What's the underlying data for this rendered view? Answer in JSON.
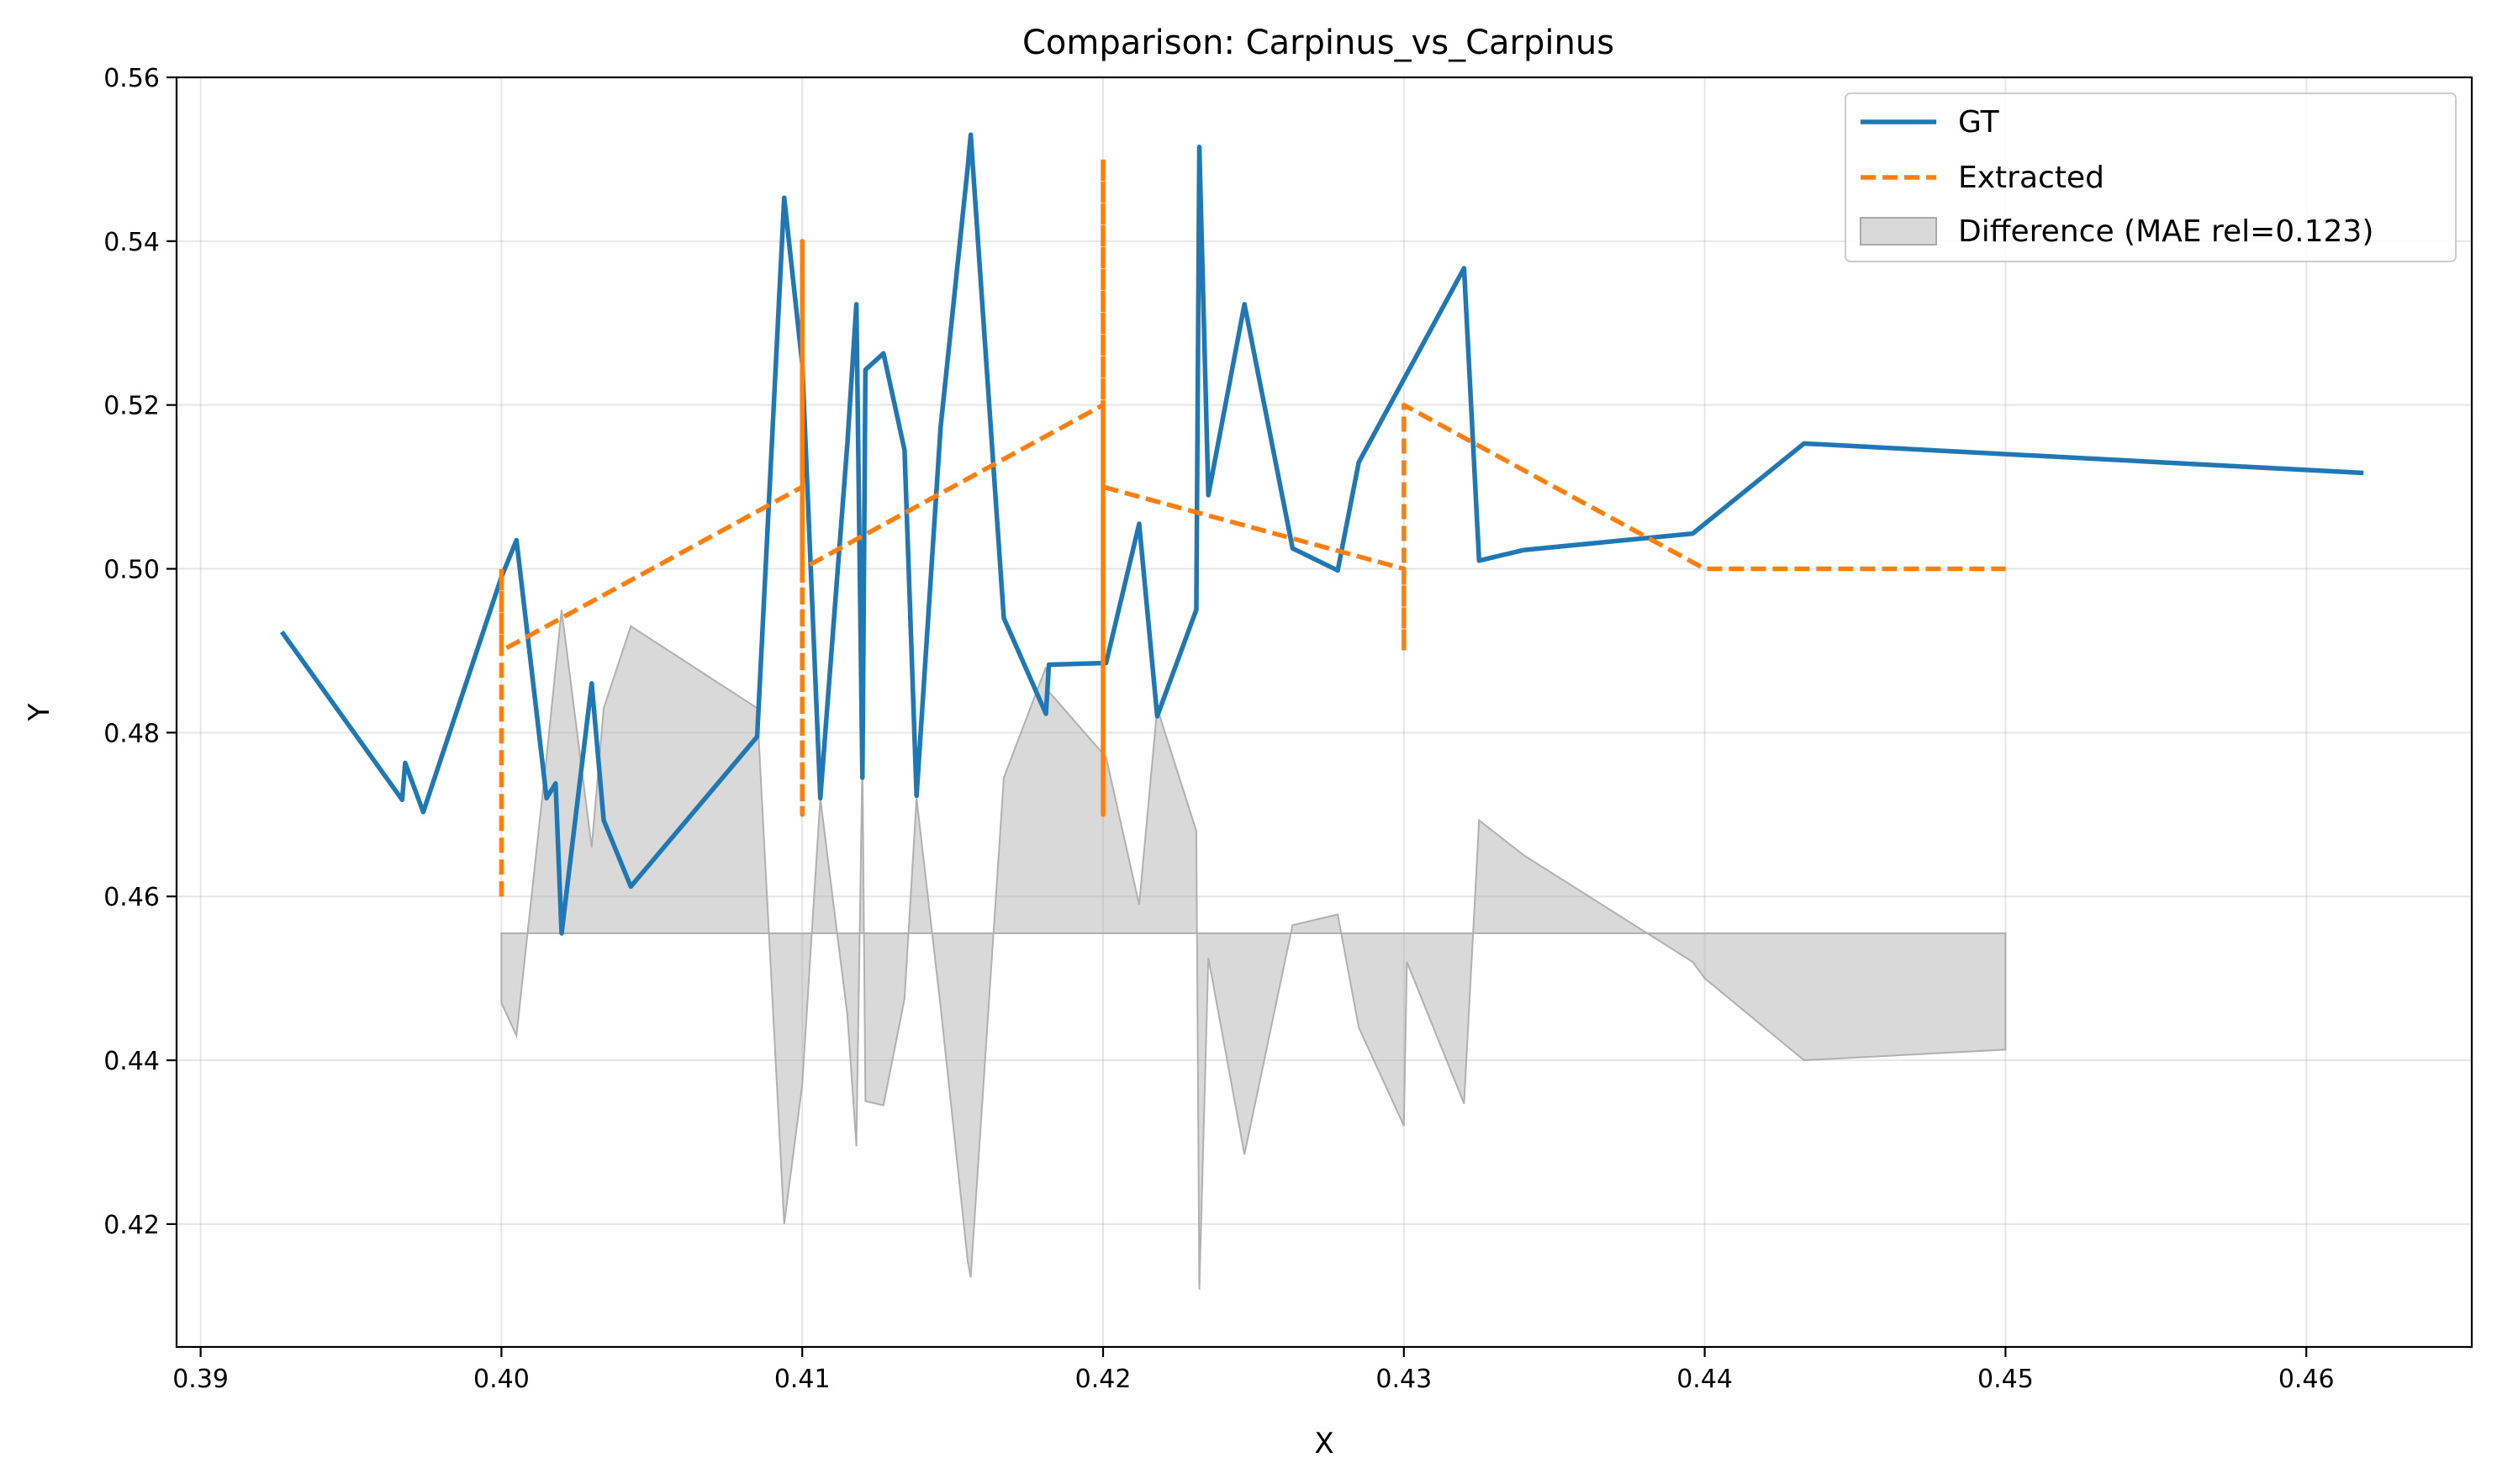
{
  "chart_data": {
    "type": "line",
    "title": "Comparison: Carpinus_vs_Carpinus",
    "xlabel": "X",
    "ylabel": "Y",
    "xlim": [
      0.3892,
      0.4655
    ],
    "ylim": [
      0.405,
      0.56
    ],
    "xticks": [
      0.39,
      0.4,
      0.41,
      0.42,
      0.43,
      0.44,
      0.45,
      0.46
    ],
    "xtick_labels": [
      "0.39",
      "0.40",
      "0.41",
      "0.42",
      "0.43",
      "0.44",
      "0.45",
      "0.46"
    ],
    "yticks": [
      0.42,
      0.44,
      0.46,
      0.48,
      0.5,
      0.52,
      0.54,
      0.56
    ],
    "ytick_labels": [
      "0.42",
      "0.44",
      "0.46",
      "0.48",
      "0.50",
      "0.52",
      "0.54",
      "0.56"
    ],
    "grid": true,
    "legend_position": "top-right",
    "series": [
      {
        "name": "GT",
        "color": "#1f77b4",
        "style": "solid",
        "x": [
          0.3927,
          0.3967,
          0.3968,
          0.3974,
          0.4,
          0.4005,
          0.4015,
          0.4018,
          0.402,
          0.403,
          0.4034,
          0.4043,
          0.4085,
          0.4094,
          0.41,
          0.4106,
          0.4115,
          0.4118,
          0.412,
          0.4121,
          0.4127,
          0.4134,
          0.4138,
          0.4146,
          0.4155,
          0.4156,
          0.4167,
          0.4181,
          0.4182,
          0.4201,
          0.4212,
          0.4218,
          0.4231,
          0.4232,
          0.4235,
          0.4247,
          0.4263,
          0.4278,
          0.4285,
          0.432,
          0.4325,
          0.434,
          0.4396,
          0.4433,
          0.4619
        ],
        "y": [
          0.4923,
          0.4718,
          0.4763,
          0.4703,
          0.499,
          0.5035,
          0.472,
          0.4738,
          0.4555,
          0.486,
          0.4693,
          0.4612,
          0.4795,
          0.5453,
          0.525,
          0.472,
          0.5153,
          0.5323,
          0.4745,
          0.5243,
          0.5263,
          0.5145,
          0.4723,
          0.5173,
          0.549,
          0.553,
          0.494,
          0.4823,
          0.4883,
          0.4885,
          0.5055,
          0.482,
          0.495,
          0.5515,
          0.509,
          0.5323,
          0.5025,
          0.4998,
          0.513,
          0.5367,
          0.501,
          0.5023,
          0.5043,
          0.5153,
          0.5117
        ]
      },
      {
        "name": "Extracted",
        "color": "#ff7f0e",
        "style": "dashed",
        "x": [
          0.4,
          0.4,
          0.4,
          0.41,
          0.41,
          0.41,
          0.41,
          0.42,
          0.42,
          0.42,
          0.42,
          0.43,
          0.43,
          0.43,
          0.43,
          0.44,
          0.45
        ],
        "y": [
          0.46,
          0.5,
          0.49,
          0.51,
          0.47,
          0.54,
          0.5,
          0.52,
          0.47,
          0.55,
          0.51,
          0.5,
          0.49,
          0.52,
          0.52,
          0.5,
          0.5
        ]
      }
    ],
    "difference": {
      "name": "Difference (MAE rel=0.123)",
      "color": "#aaaaaa",
      "baseline": 0.4555,
      "x": [
        0.4,
        0.4005,
        0.4015,
        0.402,
        0.403,
        0.4034,
        0.4043,
        0.4085,
        0.4094,
        0.41,
        0.4106,
        0.4115,
        0.4118,
        0.412,
        0.4121,
        0.4127,
        0.4134,
        0.4138,
        0.4146,
        0.4155,
        0.4156,
        0.4167,
        0.4181,
        0.4182,
        0.4201,
        0.4212,
        0.4218,
        0.4231,
        0.4232,
        0.4235,
        0.4247,
        0.4263,
        0.4278,
        0.4285,
        0.43,
        0.4301,
        0.432,
        0.4325,
        0.434,
        0.4396,
        0.44,
        0.4433,
        0.45
      ],
      "y": [
        0.447,
        0.443,
        0.477,
        0.495,
        0.466,
        0.483,
        0.493,
        0.483,
        0.42,
        0.437,
        0.472,
        0.4455,
        0.4295,
        0.477,
        0.435,
        0.4345,
        0.4475,
        0.472,
        0.4465,
        0.4155,
        0.4135,
        0.4745,
        0.488,
        0.485,
        0.477,
        0.459,
        0.483,
        0.468,
        0.412,
        0.4525,
        0.4285,
        0.4565,
        0.4578,
        0.444,
        0.432,
        0.452,
        0.4347,
        0.4693,
        0.465,
        0.452,
        0.45,
        0.44,
        0.4413
      ]
    }
  }
}
